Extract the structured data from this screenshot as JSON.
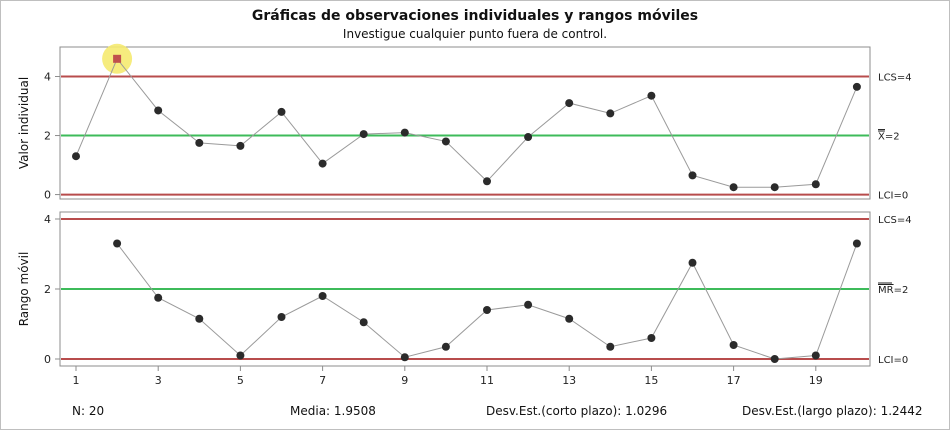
{
  "title": "Gráficas de observaciones individuales y rangos móviles",
  "subtitle": "Investigue cualquier punto fuera de control.",
  "footer": {
    "n": "N: 20",
    "media": "Media: 1.9508",
    "desv_corto": "Desv.Est.(corto plazo): 1.0296",
    "desv_largo": "Desv.Est.(largo plazo): 1.2442"
  },
  "chart_data": [
    {
      "type": "line",
      "ylabel": "Valor individual",
      "x": [
        1,
        2,
        3,
        4,
        5,
        6,
        7,
        8,
        9,
        10,
        11,
        12,
        13,
        14,
        15,
        16,
        17,
        18,
        19,
        20
      ],
      "values": [
        1.3,
        4.6,
        2.85,
        1.75,
        1.65,
        2.8,
        1.05,
        2.05,
        2.1,
        1.8,
        0.45,
        1.95,
        3.1,
        2.75,
        3.35,
        0.65,
        0.25,
        0.25,
        0.35,
        3.65
      ],
      "ylim": [
        -0.15,
        5.0
      ],
      "yticks": [
        0,
        2,
        4
      ],
      "control_lines": [
        {
          "value": 4,
          "label": "LCS=4",
          "color": "#b84c4c"
        },
        {
          "value": 2,
          "label": "X=2",
          "bar": "X",
          "suffix": "=2",
          "color": "#3dbb5a"
        },
        {
          "value": 0,
          "label": "LCI=0",
          "color": "#b84c4c"
        }
      ],
      "out_of_control": [
        2
      ]
    },
    {
      "type": "line",
      "ylabel": "Rango móvil",
      "x": [
        2,
        3,
        4,
        5,
        6,
        7,
        8,
        9,
        10,
        11,
        12,
        13,
        14,
        15,
        16,
        17,
        18,
        19,
        20
      ],
      "values": [
        3.3,
        1.75,
        1.15,
        0.1,
        1.2,
        1.8,
        1.05,
        0.05,
        0.35,
        1.4,
        1.55,
        1.15,
        0.35,
        0.6,
        2.75,
        0.4,
        0.0,
        0.1,
        3.3
      ],
      "ylim": [
        -0.2,
        4.2
      ],
      "yticks": [
        0,
        2,
        4
      ],
      "control_lines": [
        {
          "value": 4,
          "label": "LCS=4",
          "color": "#b84c4c"
        },
        {
          "value": 2,
          "label": "MR=2",
          "bar": "MR",
          "suffix": "=2",
          "color": "#3dbb5a"
        },
        {
          "value": 0,
          "label": "LCI=0",
          "color": "#b84c4c"
        }
      ],
      "out_of_control": []
    }
  ],
  "xticks": [
    1,
    3,
    5,
    7,
    9,
    11,
    13,
    15,
    17,
    19
  ],
  "colors": {
    "series_line": "#9a9a9a",
    "marker": "#2b2b2b",
    "out_marker": "#c0504d",
    "highlight": "#f5ea70",
    "axis": "#8c8c8c"
  }
}
